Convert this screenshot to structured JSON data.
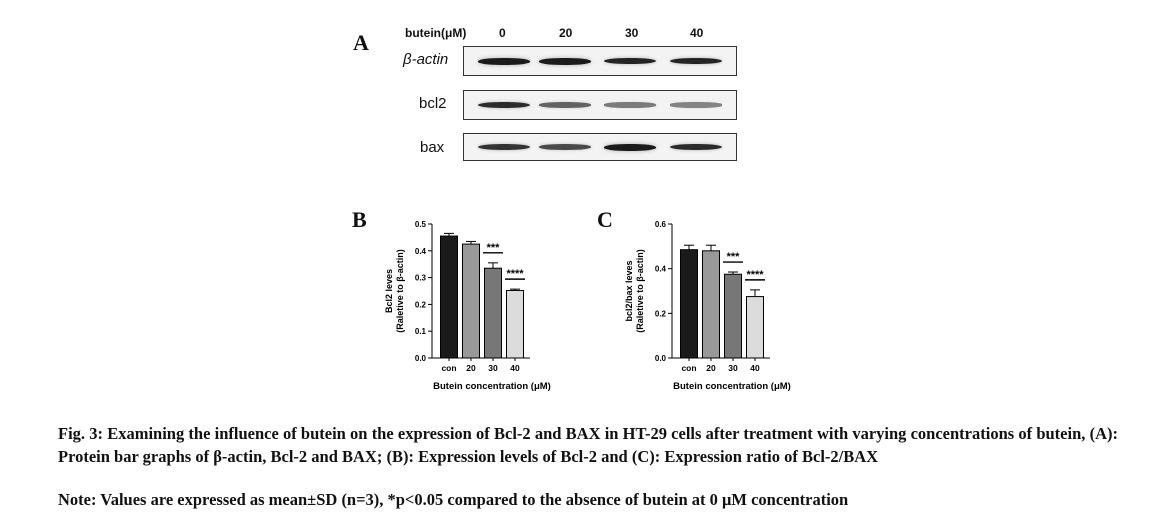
{
  "panel_a": {
    "letter": "A",
    "header_label": "butein(μM)",
    "doses": [
      "0",
      "20",
      "30",
      "40"
    ],
    "rows": [
      {
        "label": "β-actin",
        "intensity": [
          1.0,
          1.0,
          0.95,
          0.95
        ]
      },
      {
        "label": "bcl2",
        "intensity": [
          0.9,
          0.55,
          0.4,
          0.35
        ]
      },
      {
        "label": "bax",
        "intensity": [
          0.85,
          0.7,
          1.0,
          0.9
        ]
      }
    ]
  },
  "chart_data": [
    {
      "type": "bar",
      "panel": "B",
      "categories": [
        "con",
        "20",
        "30",
        "40"
      ],
      "values": [
        0.455,
        0.425,
        0.335,
        0.252
      ],
      "errors": [
        0.01,
        0.01,
        0.02,
        0.005
      ],
      "ylim": [
        0.0,
        0.5
      ],
      "yticks": [
        "0.0",
        "0.1",
        "0.2",
        "0.3",
        "0.4",
        "0.5"
      ],
      "ylabel": [
        "Bcl2 leves",
        "(Raletive to β-actin)"
      ],
      "xlabel": "Butein concentration (μM)",
      "bar_colors": [
        "#1a1a1a",
        "#999999",
        "#777777",
        "#dcdcdc"
      ],
      "significance": [
        {
          "index": 2,
          "label": "***"
        },
        {
          "index": 3,
          "label": "****"
        }
      ]
    },
    {
      "type": "bar",
      "panel": "C",
      "categories": [
        "con",
        "20",
        "30",
        "40"
      ],
      "values": [
        0.485,
        0.48,
        0.375,
        0.275
      ],
      "errors": [
        0.02,
        0.025,
        0.01,
        0.03
      ],
      "ylim": [
        0.0,
        0.6
      ],
      "yticks": [
        "0.0",
        "0.2",
        "0.4",
        "0.6"
      ],
      "ylabel": [
        "bcl2/bax leves",
        "(Raletive to β-actin)"
      ],
      "xlabel": "Butein concentration (μM)",
      "bar_colors": [
        "#1a1a1a",
        "#999999",
        "#777777",
        "#dcdcdc"
      ],
      "significance": [
        {
          "index": 2,
          "label": "***"
        },
        {
          "index": 3,
          "label": "****"
        }
      ]
    }
  ],
  "caption": "Fig. 3: Examining the influence of butein on the expression of Bcl-2 and BAX in HT-29 cells after treatment with varying concentrations of butein, (A): Protein bar graphs of β-actin, Bcl-2 and BAX; (B): Expression levels of Bcl-2 and (C): Expression ratio of Bcl-2/BAX",
  "note": "Note: Values are expressed as mean±SD (n=3), *p<0.05 compared to the absence of butein at 0 μM concentration"
}
